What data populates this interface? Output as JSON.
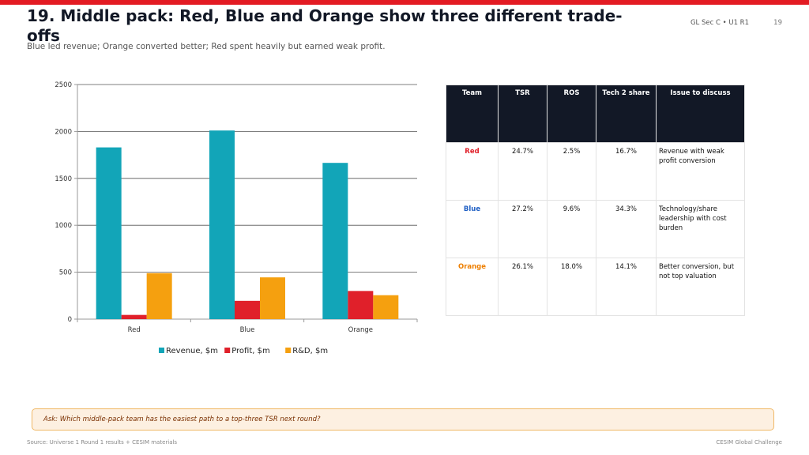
{
  "header": {
    "title": "19. Middle pack: Red, Blue and Orange show three different trade-offs",
    "subtitle": "Blue led revenue; Orange converted better; Red spent heavily but earned weak profit.",
    "tag": "GL Sec C • U1 R1",
    "page_number": "19",
    "accent_color": "#e31b23"
  },
  "chart_data": {
    "type": "bar",
    "categories": [
      "Red",
      "Blue",
      "Orange"
    ],
    "series": [
      {
        "name": "Revenue, $m",
        "color": "#12a5b8",
        "values": [
          1830,
          2010,
          1665
        ]
      },
      {
        "name": "Profit, $m",
        "color": "#e0202a",
        "values": [
          45,
          195,
          300
        ]
      },
      {
        "name": "R&D, $m",
        "color": "#f5a00f",
        "values": [
          490,
          445,
          255
        ]
      }
    ],
    "ylim": [
      0,
      2500
    ],
    "yticks": [
      "0",
      "500",
      "1000",
      "1500",
      "2000",
      "2500"
    ],
    "grid": true,
    "legend_position": "bottom"
  },
  "table": {
    "headers": [
      "Team",
      "TSR",
      "ROS",
      "Tech 2 share",
      "Issue to discuss"
    ],
    "rows": [
      {
        "team": "Red",
        "color": "#e0202a",
        "tsr": "24.7%",
        "ros": "2.5%",
        "tech": "16.7%",
        "issue": "Revenue with weak profit conversion"
      },
      {
        "team": "Blue",
        "color": "#1f5fc4",
        "tsr": "27.2%",
        "ros": "9.6%",
        "tech": "34.3%",
        "issue": "Technology/share leadership with cost burden"
      },
      {
        "team": "Orange",
        "color": "#ee7f00",
        "tsr": "26.1%",
        "ros": "18.0%",
        "tech": "14.1%",
        "issue": "Better conversion, but not top valuation"
      }
    ]
  },
  "callout": {
    "text": "Ask: Which middle-pack team has the easiest path to a top-three TSR next round?"
  },
  "footer": {
    "source": "Source: Universe 1 Round 1 results + CESIM materials",
    "right": "CESIM Global Challenge"
  }
}
